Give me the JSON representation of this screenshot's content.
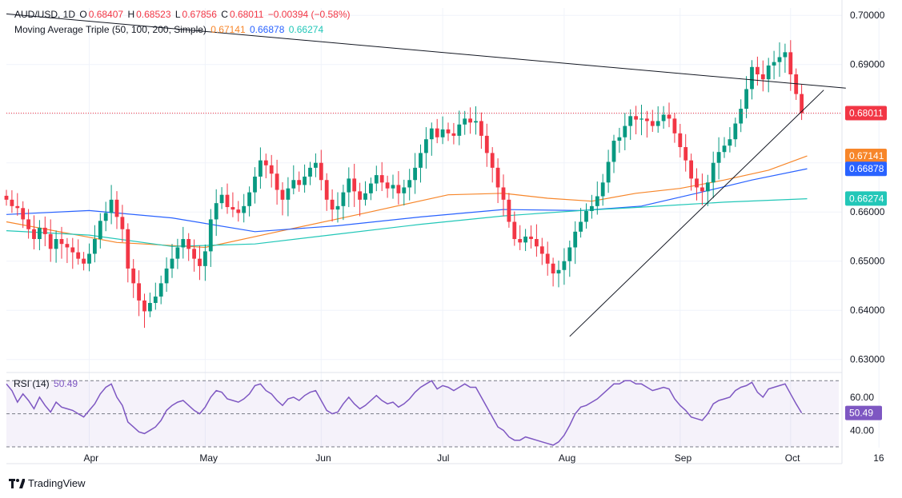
{
  "header": {
    "symbol": "AUD/USD, 1D",
    "open_label": "O",
    "open": "0.68407",
    "high_label": "H",
    "high": "0.68523",
    "low_label": "L",
    "low": "0.67856",
    "close_label": "C",
    "close": "0.68011",
    "change": "−0.00394 (−0.58%)",
    "ma_title": "Moving Average Triple (50, 100, 200, Simple)",
    "ma50_value": "0.67141",
    "ma100_value": "0.66878",
    "ma200_value": "0.66274",
    "rsi_title": "RSI (14)",
    "rsi_value": "50.49"
  },
  "footer": {
    "brand": "TradingView"
  },
  "colors": {
    "up": "#089981",
    "down": "#f23645",
    "ma50": "#f7862a",
    "ma100": "#2962ff",
    "ma200": "#22c7b8",
    "rsi": "#7e57c2",
    "price_tag": "#f23645"
  },
  "chart_data": [
    {
      "type": "candlestick",
      "title": "AUD/USD, 1D",
      "y_ticks": [
        "0.70000",
        "0.69000",
        "0.68000",
        "0.67000",
        "0.66000",
        "0.65000",
        "0.64000",
        "0.63000"
      ],
      "ylim": [
        0.628,
        0.7015
      ],
      "x_ticks": [
        "Apr",
        "May",
        "Jun",
        "Jul",
        "Aug",
        "Sep",
        "Oct",
        "16"
      ],
      "x_tick_index": [
        15,
        36,
        57,
        79,
        101,
        122,
        142,
        158
      ],
      "current_price": "0.68011",
      "current_price_value": 0.68011,
      "ma_labels": [
        {
          "name": "MA 50",
          "text": "0.67141",
          "value": 0.67141,
          "color": "#f7862a"
        },
        {
          "name": "MA 100",
          "text": "0.66878",
          "value": 0.66878,
          "color": "#2962ff"
        },
        {
          "name": "MA 200",
          "text": "0.66274",
          "value": 0.66274,
          "color": "#22c7b8"
        }
      ],
      "close_series": [
        0.6625,
        0.6612,
        0.6608,
        0.6585,
        0.6565,
        0.6545,
        0.6568,
        0.6555,
        0.6525,
        0.6545,
        0.6535,
        0.6528,
        0.6518,
        0.6505,
        0.6495,
        0.6515,
        0.6545,
        0.6582,
        0.6598,
        0.6625,
        0.659,
        0.6565,
        0.6485,
        0.6455,
        0.642,
        0.6398,
        0.6415,
        0.6428,
        0.6455,
        0.6485,
        0.6505,
        0.6528,
        0.6545,
        0.6525,
        0.6505,
        0.649,
        0.652,
        0.6585,
        0.6618,
        0.6635,
        0.661,
        0.6605,
        0.6598,
        0.6612,
        0.664,
        0.6672,
        0.6705,
        0.6695,
        0.6678,
        0.6645,
        0.6625,
        0.6648,
        0.6665,
        0.6655,
        0.6672,
        0.669,
        0.67,
        0.6665,
        0.6625,
        0.6605,
        0.6612,
        0.664,
        0.6668,
        0.6642,
        0.6625,
        0.6638,
        0.6658,
        0.6675,
        0.666,
        0.6648,
        0.6655,
        0.6638,
        0.665,
        0.6665,
        0.669,
        0.672,
        0.6748,
        0.677,
        0.6752,
        0.6768,
        0.676,
        0.6755,
        0.6778,
        0.679,
        0.6782,
        0.6785,
        0.6755,
        0.672,
        0.669,
        0.665,
        0.6625,
        0.658,
        0.6545,
        0.6538,
        0.655,
        0.6545,
        0.653,
        0.6515,
        0.6495,
        0.6475,
        0.6482,
        0.65,
        0.6528,
        0.656,
        0.658,
        0.6602,
        0.6612,
        0.6632,
        0.666,
        0.6702,
        0.6745,
        0.6752,
        0.6775,
        0.6795,
        0.6788,
        0.679,
        0.6785,
        0.6775,
        0.6785,
        0.6798,
        0.679,
        0.676,
        0.6732,
        0.6705,
        0.6668,
        0.665,
        0.6642,
        0.666,
        0.67,
        0.6722,
        0.6735,
        0.6748,
        0.678,
        0.681,
        0.685,
        0.6895,
        0.688,
        0.687,
        0.6898,
        0.6905,
        0.6915,
        0.6925,
        0.688,
        0.684,
        0.6801
      ],
      "moving_averages": [
        {
          "name": "MA 50",
          "color": "#f7862a",
          "points": [
            [
              0,
              0.658
            ],
            [
              20,
              0.6538
            ],
            [
              36,
              0.6528
            ],
            [
              50,
              0.6562
            ],
            [
              65,
              0.6598
            ],
            [
              80,
              0.6635
            ],
            [
              90,
              0.6638
            ],
            [
              98,
              0.6628
            ],
            [
              106,
              0.6622
            ],
            [
              114,
              0.6638
            ],
            [
              122,
              0.6648
            ],
            [
              130,
              0.6665
            ],
            [
              138,
              0.6685
            ],
            [
              145,
              0.6714
            ]
          ]
        },
        {
          "name": "MA 100",
          "color": "#2962ff",
          "points": [
            [
              0,
              0.6595
            ],
            [
              15,
              0.6603
            ],
            [
              30,
              0.6588
            ],
            [
              45,
              0.656
            ],
            [
              60,
              0.6572
            ],
            [
              75,
              0.659
            ],
            [
              90,
              0.6605
            ],
            [
              104,
              0.6603
            ],
            [
              115,
              0.6612
            ],
            [
              125,
              0.6638
            ],
            [
              135,
              0.6665
            ],
            [
              145,
              0.6688
            ]
          ]
        },
        {
          "name": "MA 200",
          "color": "#22c7b8",
          "points": [
            [
              0,
              0.6562
            ],
            [
              15,
              0.6553
            ],
            [
              30,
              0.653
            ],
            [
              45,
              0.6535
            ],
            [
              60,
              0.6555
            ],
            [
              75,
              0.6575
            ],
            [
              90,
              0.6592
            ],
            [
              104,
              0.6603
            ],
            [
              115,
              0.661
            ],
            [
              130,
              0.662
            ],
            [
              145,
              0.6627
            ]
          ]
        }
      ],
      "trendlines": [
        {
          "name": "descending-trendline",
          "points": [
            [
              0,
              0.7003
            ],
            [
              152,
              0.6852
            ]
          ]
        },
        {
          "name": "ascending-trendline",
          "points": [
            [
              102,
              0.6347
            ],
            [
              148,
              0.6848
            ]
          ]
        }
      ]
    },
    {
      "type": "line",
      "title": "RSI (14)",
      "y_ticks": [
        "60.00",
        "40.00"
      ],
      "ylim": [
        29.5,
        73
      ],
      "current": "50.49",
      "current_value": 50.49,
      "levels": [
        70,
        50,
        30
      ],
      "series": [
        68,
        64,
        57,
        62,
        58,
        53,
        60,
        55,
        51,
        57,
        54,
        53,
        52,
        50,
        48,
        52,
        56,
        62,
        66,
        68,
        60,
        55,
        45,
        42,
        39,
        38,
        40,
        42,
        46,
        52,
        55,
        57,
        58,
        55,
        52,
        50,
        54,
        60,
        64,
        63,
        59,
        58,
        57,
        59,
        62,
        67,
        68,
        64,
        62,
        58,
        55,
        59,
        60,
        58,
        61,
        63,
        64,
        58,
        52,
        50,
        51,
        56,
        60,
        56,
        53,
        55,
        58,
        61,
        58,
        56,
        57,
        54,
        56,
        59,
        63,
        66,
        68,
        70,
        65,
        67,
        66,
        64,
        66,
        68,
        66,
        66,
        60,
        54,
        48,
        42,
        40,
        36,
        34,
        34,
        36,
        35,
        34,
        33,
        32,
        31,
        33,
        37,
        43,
        50,
        54,
        55,
        57,
        59,
        62,
        65,
        68,
        68,
        70,
        70,
        68,
        68,
        66,
        64,
        65,
        66,
        65,
        59,
        55,
        52,
        48,
        47,
        46,
        50,
        56,
        58,
        59,
        60,
        64,
        66,
        67,
        69,
        63,
        60,
        65,
        66,
        67,
        68,
        62,
        56,
        50.49
      ]
    }
  ]
}
